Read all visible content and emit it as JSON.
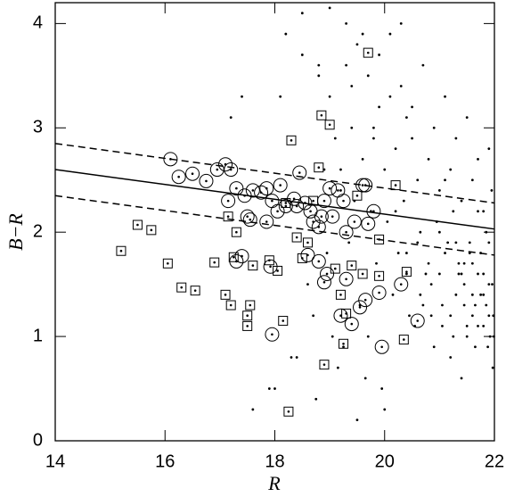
{
  "chart_data": {
    "type": "scatter",
    "xlabel": "R",
    "ylabel": "B−R",
    "xlim": [
      14,
      22
    ],
    "ylim": [
      0,
      4.2
    ],
    "xticks": [
      14,
      16,
      18,
      20,
      22
    ],
    "yticks": [
      0,
      1,
      2,
      3,
      4
    ],
    "grid": false,
    "series": [
      {
        "marker": "dot",
        "color": "#000000",
        "x": [
          18.2,
          18.5,
          18.8,
          19.0,
          19.3,
          19.5,
          19.7,
          19.9,
          20.1,
          20.3,
          20.5,
          20.7,
          20.9,
          21.1,
          21.3,
          21.5,
          21.7,
          21.9,
          19.1,
          19.4,
          19.6,
          19.8,
          20.0,
          20.2,
          20.4,
          20.6,
          20.8,
          21.0,
          21.2,
          21.4,
          21.6,
          21.8,
          21.95,
          18.9,
          19.2,
          19.45,
          19.75,
          20.05,
          20.35,
          20.65,
          20.95,
          21.25,
          21.55,
          21.85,
          18.6,
          18.95,
          19.35,
          19.85,
          20.25,
          20.75,
          21.15,
          21.45,
          21.75,
          21.9,
          17.6,
          17.9,
          18.3,
          18.7,
          19.05,
          19.55,
          20.15,
          20.45,
          20.85,
          21.35,
          21.65,
          21.8,
          21.98,
          19.25,
          19.65,
          20.55,
          21.05,
          21.5,
          21.7,
          21.88,
          18.4,
          18.75,
          19.15,
          19.95,
          20.9,
          21.6,
          21.2,
          21.92,
          21.4,
          20.0,
          19.5,
          18.1,
          17.4,
          17.2,
          18.0,
          21.1,
          21.3,
          21.7,
          21.96,
          20.8,
          20.6,
          21.0,
          21.5,
          21.85,
          20.4,
          19.8,
          21.6,
          21.9,
          21.2,
          20.2,
          19.7,
          21.45,
          21.75,
          21.99,
          20.7,
          21.3,
          19.3,
          19.9,
          20.5,
          21.1,
          21.7,
          18.8,
          19.6,
          20.3,
          20.95,
          21.55,
          21.8,
          21.35,
          21.05,
          20.65,
          21.9,
          21.65,
          21.25,
          20.85,
          21.45,
          21.97,
          19.0,
          19.4,
          18.5,
          20.1,
          21.0,
          21.6,
          21.8,
          20.4,
          19.2,
          21.4
        ],
        "values": [
          3.9,
          4.1,
          3.6,
          3.3,
          4.0,
          3.8,
          3.5,
          3.7,
          3.9,
          3.4,
          3.2,
          3.6,
          3.0,
          3.3,
          2.9,
          3.1,
          2.7,
          2.8,
          2.9,
          3.4,
          2.7,
          3.0,
          2.6,
          2.8,
          3.1,
          2.5,
          2.7,
          2.4,
          2.6,
          2.3,
          2.5,
          2.2,
          2.4,
          2.6,
          2.4,
          2.3,
          2.2,
          2.1,
          2.3,
          2.0,
          2.1,
          2.2,
          1.9,
          2.0,
          1.5,
          1.8,
          1.9,
          1.7,
          1.8,
          1.6,
          1.9,
          1.7,
          1.8,
          1.5,
          0.3,
          0.5,
          0.8,
          1.2,
          1.0,
          1.3,
          1.4,
          1.2,
          1.5,
          1.6,
          1.3,
          1.4,
          1.2,
          0.9,
          0.6,
          1.1,
          1.3,
          1.0,
          1.1,
          0.9,
          0.8,
          0.4,
          0.7,
          0.5,
          0.9,
          1.2,
          0.8,
          1.0,
          0.6,
          0.3,
          0.2,
          3.3,
          3.3,
          3.1,
          0.5,
          1.8,
          1.4,
          1.6,
          1.5,
          1.7,
          1.9,
          2.0,
          1.1,
          1.3,
          1.6,
          2.9,
          1.7,
          1.9,
          1.2,
          2.2,
          1.0,
          1.5,
          1.4,
          1.0,
          1.3,
          1.9,
          3.6,
          3.2,
          2.9,
          2.5,
          2.2,
          3.5,
          3.9,
          4.0,
          2.1,
          1.8,
          1.6,
          1.7,
          1.1,
          1.4,
          1.2,
          0.9,
          1.0,
          1.2,
          1.3,
          0.7,
          4.15,
          3.0,
          3.7,
          3.3,
          1.6,
          1.4,
          1.1,
          1.8,
          2.6,
          1.6
        ]
      },
      {
        "marker": "circle",
        "color": "#000000",
        "x": [
          16.1,
          16.25,
          16.5,
          16.75,
          16.95,
          17.1,
          17.2,
          17.3,
          17.15,
          17.45,
          17.5,
          17.6,
          17.75,
          17.85,
          17.95,
          18.05,
          18.1,
          18.2,
          18.35,
          18.45,
          18.55,
          18.65,
          18.7,
          18.8,
          18.85,
          18.9,
          19.0,
          19.05,
          19.15,
          19.25,
          19.3,
          19.45,
          19.6,
          19.65,
          19.7,
          19.8,
          17.3,
          17.4,
          17.92,
          17.95,
          18.6,
          18.8,
          18.95,
          19.2,
          19.4,
          19.55,
          19.65,
          19.9,
          19.95,
          20.3,
          20.6,
          17.85,
          18.4,
          17.55,
          19.3,
          18.9
        ],
        "values": [
          2.7,
          2.53,
          2.56,
          2.49,
          2.6,
          2.65,
          2.6,
          2.42,
          2.3,
          2.35,
          2.15,
          2.4,
          2.38,
          2.42,
          2.3,
          2.2,
          2.45,
          2.25,
          2.32,
          2.57,
          2.28,
          2.2,
          2.1,
          2.05,
          2.15,
          2.3,
          2.42,
          2.15,
          2.4,
          2.3,
          2.0,
          2.1,
          2.45,
          2.45,
          2.08,
          2.2,
          1.72,
          1.77,
          1.67,
          1.02,
          1.78,
          1.72,
          1.6,
          1.2,
          1.12,
          1.28,
          1.35,
          1.42,
          0.9,
          1.5,
          1.15,
          2.1,
          2.25,
          2.12,
          1.55,
          1.52
        ]
      },
      {
        "marker": "square",
        "color": "#000000",
        "x": [
          15.2,
          15.5,
          15.75,
          16.05,
          16.3,
          16.55,
          16.9,
          17.1,
          17.2,
          17.25,
          17.3,
          17.5,
          17.5,
          17.55,
          17.6,
          17.9,
          18.05,
          18.15,
          18.25,
          18.3,
          18.4,
          18.5,
          18.6,
          18.7,
          18.8,
          18.85,
          18.9,
          19.0,
          19.1,
          19.2,
          19.25,
          19.4,
          19.5,
          19.7,
          19.9,
          19.9,
          20.2,
          20.35,
          20.4,
          17.15,
          18.2,
          19.6,
          19.3
        ],
        "values": [
          1.82,
          2.07,
          2.02,
          1.7,
          1.47,
          1.44,
          1.71,
          1.4,
          1.3,
          1.76,
          2.0,
          1.2,
          1.1,
          1.3,
          1.68,
          1.73,
          1.63,
          1.15,
          0.28,
          2.88,
          1.95,
          1.75,
          1.9,
          2.3,
          2.62,
          3.12,
          0.73,
          3.03,
          1.65,
          1.4,
          0.93,
          1.68,
          2.35,
          3.72,
          1.93,
          1.58,
          2.45,
          0.97,
          1.62,
          2.15,
          2.28,
          1.6,
          1.22
        ]
      },
      {
        "marker": "solid",
        "color": "#000000",
        "x": [
          14,
          22
        ],
        "values": [
          2.6,
          2.03
        ]
      },
      {
        "marker": "dashed",
        "color": "#000000",
        "x": [
          14,
          22
        ],
        "values": [
          2.85,
          2.28
        ]
      },
      {
        "marker": "dashed",
        "color": "#000000",
        "x": [
          14,
          22
        ],
        "values": [
          2.35,
          1.78
        ]
      }
    ]
  }
}
